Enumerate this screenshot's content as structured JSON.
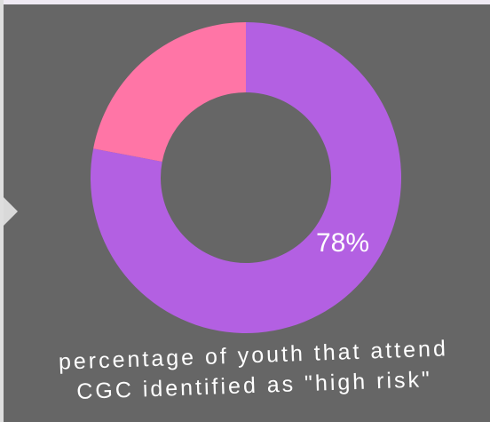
{
  "colors": {
    "background": "#666666",
    "primary_slice": "#b360e2",
    "secondary_slice": "#ff75a6",
    "text": "#ffffff"
  },
  "chart_data": {
    "type": "pie",
    "donut": true,
    "slices": [
      {
        "value": 78,
        "label": "78%",
        "color": "#b360e2"
      },
      {
        "value": 22,
        "label": "",
        "color": "#ff75a6"
      }
    ],
    "caption": "percentage of youth that attend CGC identified as \"high risk\"",
    "caption_lines": [
      "percentage of youth that attend",
      "CGC identified as \"high risk\""
    ],
    "legend": "none"
  }
}
